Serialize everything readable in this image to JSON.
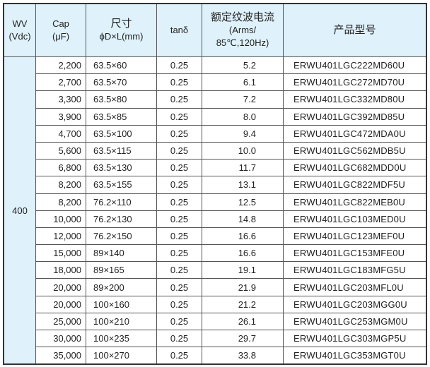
{
  "header": {
    "wv": [
      "WV",
      "(Vdc)"
    ],
    "cap": [
      "Cap",
      "(μF)"
    ],
    "size": [
      "尺寸",
      "ϕD×L(mm)"
    ],
    "tan": "tanδ",
    "ripple": [
      "额定纹波电流",
      "(Arms/",
      "85℃,120Hz)"
    ],
    "part": "产品型号"
  },
  "wv_value": "400",
  "rows": [
    [
      "2,200",
      "63.5×60",
      "0.25",
      "5.2",
      "ERWU401LGC222MD60U"
    ],
    [
      "2,700",
      "63.5×70",
      "0.25",
      "6.1",
      "ERWU401LGC272MD70U"
    ],
    [
      "3,300",
      "63.5×80",
      "0.25",
      "7.2",
      "ERWU401LGC332MD80U"
    ],
    [
      "3,900",
      "63.5×85",
      "0.25",
      "8.0",
      "ERWU401LGC392MD85U"
    ],
    [
      "4,700",
      "63.5×100",
      "0.25",
      "9.4",
      "ERWU401LGC472MDA0U"
    ],
    [
      "5,600",
      "63.5×115",
      "0.25",
      "10.0",
      "ERWU401LGC562MDB5U"
    ],
    [
      "6,800",
      "63.5×130",
      "0.25",
      "11.7",
      "ERWU401LGC682MDD0U"
    ],
    [
      "8,200",
      "63.5×155",
      "0.25",
      "13.1",
      "ERWU401LGC822MDF5U"
    ],
    [
      "8,200",
      "76.2×110",
      "0.25",
      "12.5",
      "ERWU401LGC822MEB0U"
    ],
    [
      "10,000",
      "76.2×130",
      "0.25",
      "14.8",
      "ERWU401LGC103MED0U"
    ],
    [
      "12,000",
      "76.2×150",
      "0.25",
      "16.6",
      "ERWU401LGC123MEF0U"
    ],
    [
      "15,000",
      "89×140",
      "0.25",
      "16.6",
      "ERWU401LGC153MFE0U"
    ],
    [
      "18,000",
      "89×165",
      "0.25",
      "19.1",
      "ERWU401LGC183MFG5U"
    ],
    [
      "20,000",
      "89×200",
      "0.25",
      "21.9",
      "ERWU401LGC203MFL0U"
    ],
    [
      "20,000",
      "100×160",
      "0.25",
      "21.2",
      "ERWU401LGC203MGG0U"
    ],
    [
      "25,000",
      "100×210",
      "0.25",
      "26.1",
      "ERWU401LGC253MGM0U"
    ],
    [
      "30,000",
      "100×235",
      "0.25",
      "29.7",
      "ERWU401LGC303MGP5U"
    ],
    [
      "35,000",
      "100×270",
      "0.25",
      "33.8",
      "ERWU401LGC353MGT0U"
    ]
  ]
}
